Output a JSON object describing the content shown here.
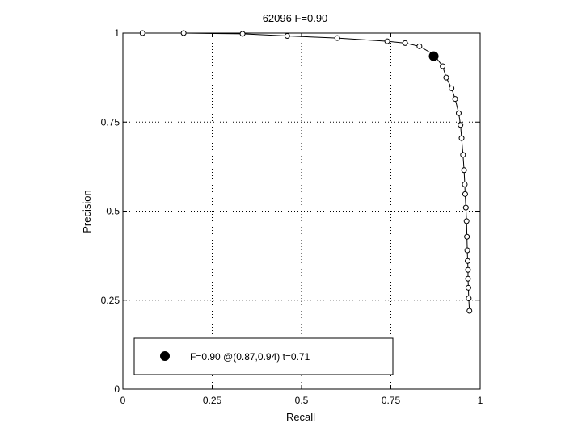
{
  "chart_data": {
    "type": "line",
    "title": "62096 F=0.90",
    "xlabel": "Recall",
    "ylabel": "Precision",
    "xlim": [
      0,
      1
    ],
    "ylim": [
      0,
      1
    ],
    "x_ticks": [
      0,
      0.25,
      0.5,
      0.75,
      1
    ],
    "y_ticks": [
      0,
      0.25,
      0.5,
      0.75,
      1
    ],
    "x_tick_labels": [
      "0",
      "0.25",
      "0.5",
      "0.75",
      "1"
    ],
    "y_tick_labels": [
      "0",
      "0.25",
      "0.5",
      "0.75",
      "1"
    ],
    "grid": "dotted",
    "series": [
      {
        "points": [
          [
            0.055,
            1.0
          ],
          [
            0.17,
            1.0
          ],
          [
            0.335,
            0.998
          ],
          [
            0.46,
            0.992
          ],
          [
            0.6,
            0.986
          ],
          [
            0.74,
            0.977
          ],
          [
            0.79,
            0.972
          ],
          [
            0.83,
            0.963
          ],
          [
            0.87,
            0.94
          ],
          [
            0.895,
            0.907
          ],
          [
            0.905,
            0.875
          ],
          [
            0.92,
            0.845
          ],
          [
            0.93,
            0.815
          ],
          [
            0.94,
            0.775
          ],
          [
            0.945,
            0.742
          ],
          [
            0.948,
            0.705
          ],
          [
            0.952,
            0.658
          ],
          [
            0.955,
            0.615
          ],
          [
            0.957,
            0.575
          ],
          [
            0.958,
            0.548
          ],
          [
            0.96,
            0.51
          ],
          [
            0.962,
            0.472
          ],
          [
            0.963,
            0.428
          ],
          [
            0.964,
            0.39
          ],
          [
            0.965,
            0.36
          ],
          [
            0.966,
            0.335
          ],
          [
            0.966,
            0.31
          ],
          [
            0.967,
            0.285
          ],
          [
            0.968,
            0.255
          ],
          [
            0.97,
            0.22
          ]
        ]
      }
    ],
    "highlight_point": [
      0.87,
      0.935
    ],
    "legend": {
      "placement": "bottom-left",
      "text": "F=0.90 @(0.87,0.94) t=0.71"
    },
    "colors": {
      "line": "#000000",
      "grid": "#000000",
      "background": "#ffffff"
    }
  }
}
